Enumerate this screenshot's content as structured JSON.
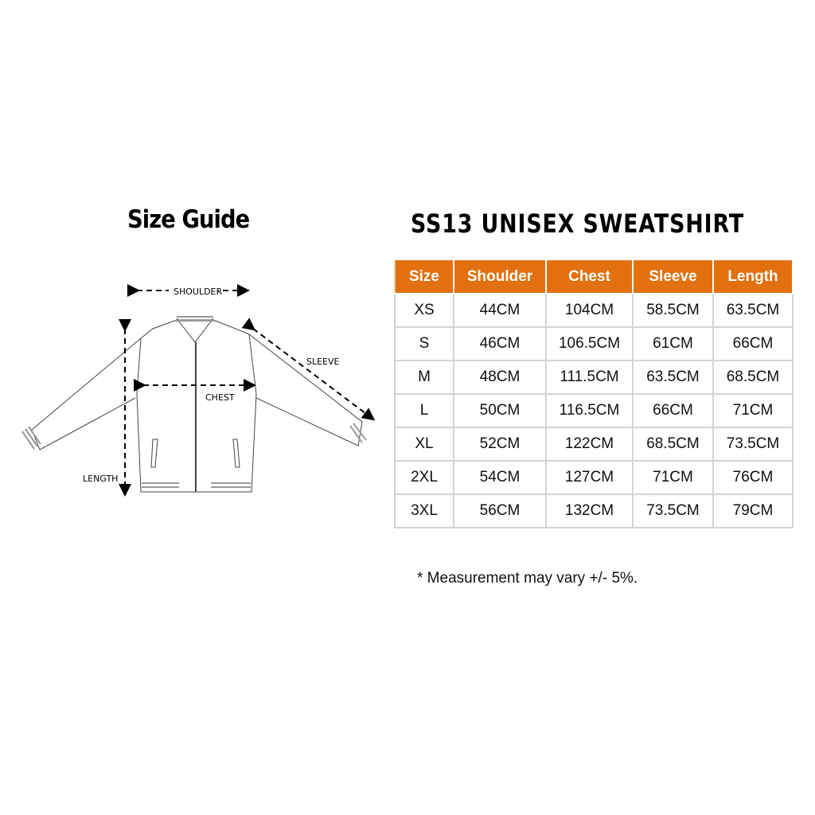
{
  "left_title": "Size Guide",
  "right_title": "SS13 UNISEX SWEATSHIRT",
  "diagram": {
    "shoulder": "SHOULDER",
    "sleeve": "SLEEVE",
    "chest": "CHEST",
    "length": "LENGTH"
  },
  "table": {
    "header_color": "#e2700f",
    "columns": [
      "Size",
      "Shoulder",
      "Chest",
      "Sleeve",
      "Length"
    ],
    "rows": [
      [
        "XS",
        "44CM",
        "104CM",
        "58.5CM",
        "63.5CM"
      ],
      [
        "S",
        "46CM",
        "106.5CM",
        "61CM",
        "66CM"
      ],
      [
        "M",
        "48CM",
        "111.5CM",
        "63.5CM",
        "68.5CM"
      ],
      [
        "L",
        "50CM",
        "116.5CM",
        "66CM",
        "71CM"
      ],
      [
        "XL",
        "52CM",
        "122CM",
        "68.5CM",
        "73.5CM"
      ],
      [
        "2XL",
        "54CM",
        "127CM",
        "71CM",
        "76CM"
      ],
      [
        "3XL",
        "56CM",
        "132CM",
        "73.5CM",
        "79CM"
      ]
    ]
  },
  "note": "* Measurement may vary +/- 5%."
}
